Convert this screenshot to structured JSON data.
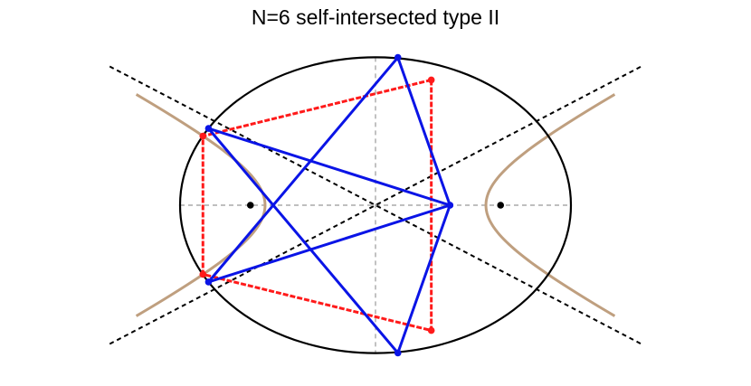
{
  "title": "N=6 self-intersected type II",
  "colors": {
    "ellipse": "#000000",
    "axes": "#999999",
    "asymptote": "#000000",
    "hyperbola": "#bf9f7f",
    "red_polygon": "#ff1a1a",
    "blue_polygon": "#0a14e6",
    "focus": "#000000"
  },
  "figure": {
    "ellipse": {
      "a": 1.0,
      "b": 0.7575
    },
    "foci": [
      [
        -0.64,
        0
      ],
      [
        0.64,
        0
      ]
    ],
    "hyperbola": {
      "vertex_x": 0.565,
      "asymptote_slope": 0.5225
    },
    "red_polygon": [
      [
        0.2855,
        0.6415
      ],
      [
        0.2855,
        -0.6415
      ],
      [
        -0.883,
        -0.3539
      ],
      [
        -0.883,
        0.3539
      ]
    ],
    "blue_polygon": [
      [
        0.1145,
        0.7566
      ],
      [
        -0.8545,
        -0.393
      ],
      [
        0.381,
        0.0
      ],
      [
        0.1145,
        -0.7566
      ],
      [
        -0.8545,
        0.393
      ],
      [
        0.381,
        0.0
      ]
    ],
    "blue_extra_vertices": [
      [
        0.381,
        0.0
      ],
      [
        0.381,
        0.0
      ]
    ]
  }
}
